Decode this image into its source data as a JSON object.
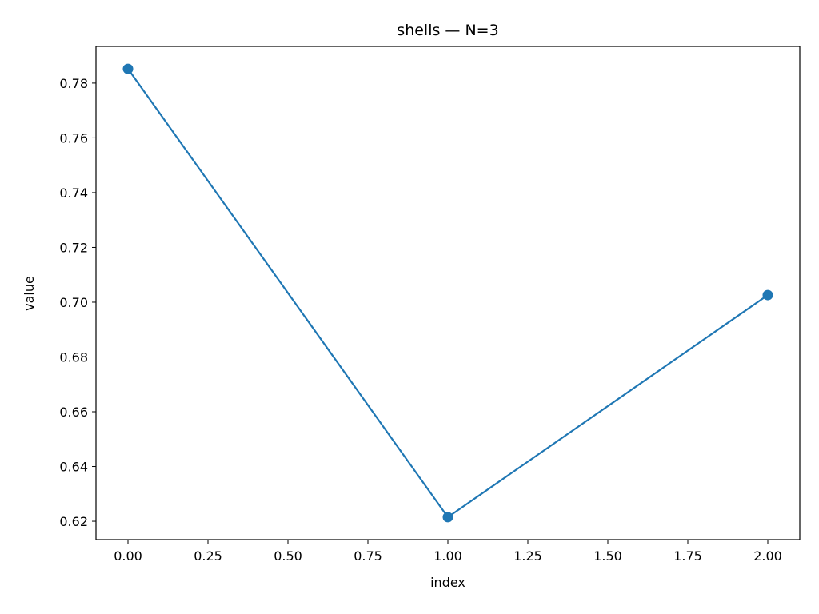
{
  "chart_data": {
    "type": "line",
    "title": "shells — N=3",
    "xlabel": "index",
    "ylabel": "value",
    "x": [
      0,
      1,
      2
    ],
    "series": [
      {
        "values": [
          0.7852,
          0.6215,
          0.7026
        ],
        "color": "#1f77b4",
        "marker": "circle"
      }
    ],
    "xlim": [
      -0.1,
      2.1
    ],
    "ylim": [
      0.6133,
      0.7934
    ],
    "xticks": [
      0.0,
      0.25,
      0.5,
      0.75,
      1.0,
      1.25,
      1.5,
      1.75,
      2.0
    ],
    "xtick_labels": [
      "0.00",
      "0.25",
      "0.50",
      "0.75",
      "1.00",
      "1.25",
      "1.50",
      "1.75",
      "2.00"
    ],
    "yticks": [
      0.62,
      0.64,
      0.66,
      0.68,
      0.7,
      0.72,
      0.74,
      0.76,
      0.78
    ],
    "ytick_labels": [
      "0.62",
      "0.64",
      "0.66",
      "0.68",
      "0.70",
      "0.72",
      "0.74",
      "0.76",
      "0.78"
    ],
    "grid": false,
    "legend": "none"
  }
}
